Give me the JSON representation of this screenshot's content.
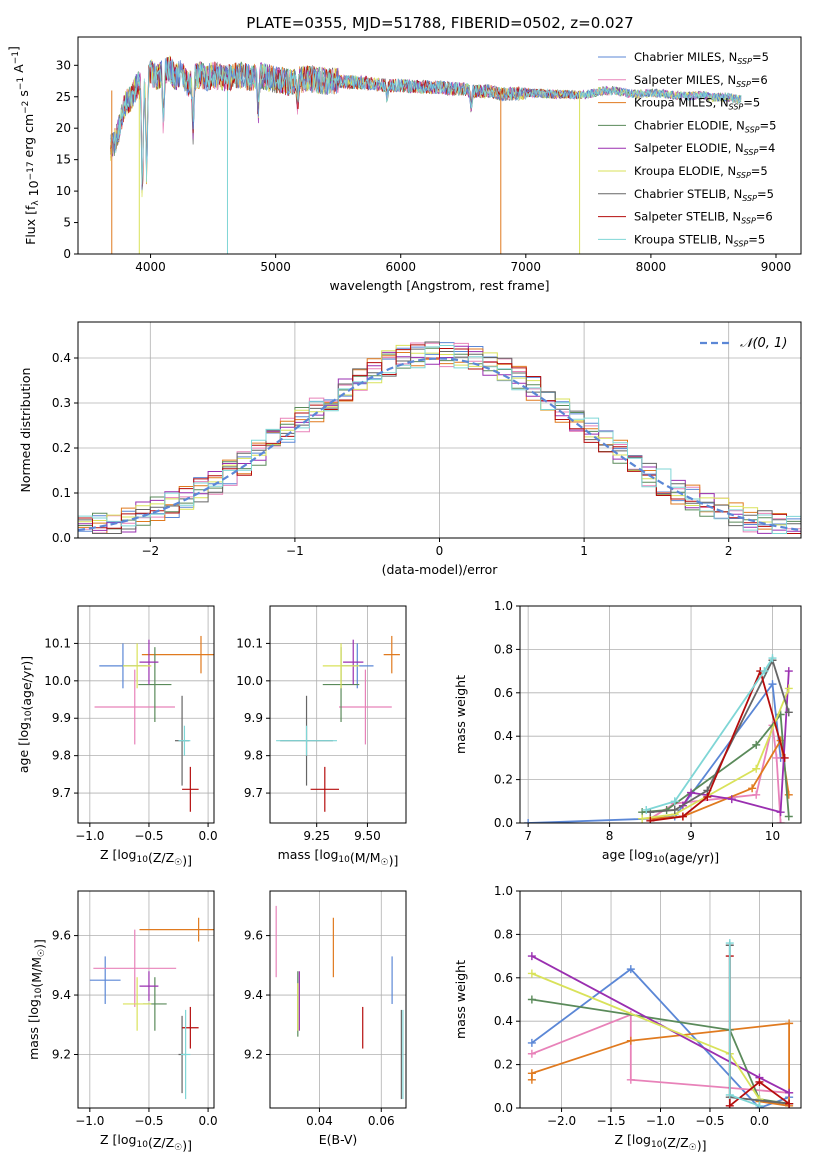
{
  "figure_title": "PLATE=0355, MJD=51788, FIBERID=0502, z=0.027",
  "colors": [
    "#5b87d6",
    "#e882b9",
    "#e07a1f",
    "#5a8a5a",
    "#9a2fb0",
    "#d9e25a",
    "#666666",
    "#b50d0d",
    "#7fd6d6"
  ],
  "legend_labels": [
    "Chabrier MILES, N_SSP=5",
    "Salpeter MILES, N_SSP=6",
    "Kroupa MILES, N_SSP=5",
    "Chabrier ELODIE, N_SSP=5",
    "Salpeter ELODIE, N_SSP=4",
    "Kroupa ELODIE, N_SSP=5",
    "Chabrier STELIB, N_SSP=5",
    "Salpeter STELIB, N_SSP=6",
    "Kroupa STELIB, N_SSP=5"
  ],
  "chart_data": [
    {
      "id": "spectrum",
      "type": "line",
      "xlabel": "wavelength [Angstrom, rest frame]",
      "ylabel": "Flux [f_λ 10^-17 erg cm^-2 s^-1 A^-1]",
      "xlim": [
        3420,
        9200
      ],
      "ylim": [
        0,
        34.5
      ],
      "xticks": [
        4000,
        5000,
        6000,
        7000,
        8000,
        9000
      ],
      "yticks": [
        0,
        5,
        10,
        15,
        20,
        25,
        30
      ],
      "grid": false,
      "legend": "top-right",
      "continuum": [
        [
          3680,
          17
        ],
        [
          3720,
          18
        ],
        [
          3760,
          21
        ],
        [
          3800,
          24
        ],
        [
          3850,
          25
        ],
        [
          3900,
          27
        ],
        [
          3950,
          26
        ],
        [
          4000,
          29
        ],
        [
          4050,
          28
        ],
        [
          4100,
          29
        ],
        [
          4150,
          29.5
        ],
        [
          4200,
          28
        ],
        [
          4250,
          29
        ],
        [
          4300,
          27
        ],
        [
          4350,
          28
        ],
        [
          4400,
          28.5
        ],
        [
          4450,
          28
        ],
        [
          4500,
          28.5
        ],
        [
          4600,
          28
        ],
        [
          4700,
          28.5
        ],
        [
          4800,
          28
        ],
        [
          4900,
          28.3
        ],
        [
          5000,
          27.7
        ],
        [
          5100,
          27.3
        ],
        [
          5200,
          27.7
        ],
        [
          5300,
          27.8
        ],
        [
          5400,
          27.5
        ],
        [
          5500,
          27.5
        ],
        [
          5600,
          27.3
        ],
        [
          5700,
          27.3
        ],
        [
          5800,
          27
        ],
        [
          5900,
          26.8
        ],
        [
          6000,
          26.8
        ],
        [
          6100,
          26.6
        ],
        [
          6200,
          26.6
        ],
        [
          6300,
          26.5
        ],
        [
          6400,
          26.3
        ],
        [
          6500,
          26.2
        ],
        [
          6600,
          25.8
        ],
        [
          6700,
          25.9
        ],
        [
          6800,
          25.4
        ],
        [
          6900,
          25.5
        ],
        [
          7000,
          25.6
        ],
        [
          7100,
          25.6
        ],
        [
          7200,
          25.4
        ],
        [
          7300,
          25.4
        ],
        [
          7400,
          25.3
        ],
        [
          7500,
          25.4
        ],
        [
          7600,
          25.9
        ],
        [
          7700,
          26
        ],
        [
          7800,
          25.6
        ],
        [
          7900,
          25.4
        ],
        [
          8000,
          25.6
        ],
        [
          8100,
          25.5
        ],
        [
          8200,
          25.2
        ],
        [
          8300,
          25.1
        ],
        [
          8400,
          25.3
        ],
        [
          8500,
          24.9
        ],
        [
          8600,
          24.9
        ],
        [
          8700,
          24.6
        ]
      ],
      "dips": [
        [
          3934,
          8
        ],
        [
          3969,
          12
        ],
        [
          4102,
          20
        ],
        [
          4340,
          19.5
        ],
        [
          4861,
          22
        ],
        [
          5175,
          24
        ],
        [
          5890,
          25
        ],
        [
          6563,
          23
        ]
      ],
      "gaps": [
        [
          3690,
          0
        ],
        [
          3910,
          0
        ],
        [
          4615,
          0
        ],
        [
          6800,
          0
        ],
        [
          7430,
          0
        ]
      ]
    },
    {
      "id": "residuals",
      "type": "histogram",
      "xlabel": "(data-model)/error",
      "ylabel": "Normed distribution",
      "xlim": [
        -2.5,
        2.5
      ],
      "ylim": [
        0,
        0.48
      ],
      "xticks": [
        -2,
        -1,
        0,
        1,
        2
      ],
      "yticks": [
        0,
        0.1,
        0.2,
        0.3,
        0.4
      ],
      "grid": true,
      "legend": "top-right",
      "gaussian_label": "𝒩(0, 1)",
      "bin_width": 0.1
    },
    {
      "id": "age_vs_Z",
      "type": "errorbar",
      "xlabel": "Z [log10(Z/Z☉)]",
      "ylabel": "age [log10(age/yr)]",
      "xlim": [
        -1.1,
        0.05
      ],
      "ylim": [
        9.62,
        10.2
      ],
      "xticks": [
        -1.0,
        -0.5,
        0.0
      ],
      "yticks": [
        9.7,
        9.8,
        9.9,
        10.0,
        10.1
      ],
      "grid": true,
      "points": [
        {
          "series": 0,
          "x": -0.72,
          "xerr": 0.2,
          "y": 10.04,
          "yerr": 0.06
        },
        {
          "series": 1,
          "x": -0.62,
          "xerr": 0.34,
          "y": 9.93,
          "yerr": 0.1
        },
        {
          "series": 2,
          "x": -0.06,
          "xerr": 0.5,
          "y": 10.07,
          "yerr": 0.05
        },
        {
          "series": 3,
          "x": -0.45,
          "xerr": 0.14,
          "y": 9.99,
          "yerr": 0.1
        },
        {
          "series": 4,
          "x": -0.5,
          "xerr": 0.08,
          "y": 10.05,
          "yerr": 0.06
        },
        {
          "series": 5,
          "x": -0.6,
          "xerr": 0.12,
          "y": 10.04,
          "yerr": 0.06
        },
        {
          "series": 6,
          "x": -0.22,
          "xerr": 0.06,
          "y": 9.84,
          "yerr": 0.12
        },
        {
          "series": 7,
          "x": -0.15,
          "xerr": 0.07,
          "y": 9.71,
          "yerr": 0.06
        },
        {
          "series": 8,
          "x": -0.2,
          "xerr": 0.05,
          "y": 9.84,
          "yerr": 0.04
        }
      ]
    },
    {
      "id": "age_vs_mass",
      "type": "errorbar",
      "xlabel": "mass [log10(M/M☉)]",
      "ylabel": "",
      "xlim": [
        9.02,
        9.69
      ],
      "ylim": [
        9.62,
        10.2
      ],
      "xticks": [
        9.25,
        9.5
      ],
      "yticks": [
        9.7,
        9.8,
        9.9,
        10.0,
        10.1
      ],
      "grid": true,
      "points": [
        {
          "series": 0,
          "x": 9.45,
          "xerr": 0.08,
          "y": 10.04,
          "yerr": 0.06
        },
        {
          "series": 1,
          "x": 9.49,
          "xerr": 0.13,
          "y": 9.93,
          "yerr": 0.1
        },
        {
          "series": 2,
          "x": 9.62,
          "xerr": 0.04,
          "y": 10.07,
          "yerr": 0.05
        },
        {
          "series": 3,
          "x": 9.37,
          "xerr": 0.09,
          "y": 9.99,
          "yerr": 0.1
        },
        {
          "series": 4,
          "x": 9.43,
          "xerr": 0.05,
          "y": 10.05,
          "yerr": 0.06
        },
        {
          "series": 5,
          "x": 9.37,
          "xerr": 0.09,
          "y": 10.04,
          "yerr": 0.06
        },
        {
          "series": 6,
          "x": 9.2,
          "xerr": 0.13,
          "y": 9.84,
          "yerr": 0.12
        },
        {
          "series": 7,
          "x": 9.29,
          "xerr": 0.07,
          "y": 9.71,
          "yerr": 0.06
        },
        {
          "series": 8,
          "x": 9.2,
          "xerr": 0.15,
          "y": 9.84,
          "yerr": 0.04
        }
      ]
    },
    {
      "id": "massweight_vs_age",
      "type": "line",
      "xlabel": "age [log10(age/yr)]",
      "ylabel": "mass weight",
      "xlim": [
        6.9,
        10.35
      ],
      "ylim": [
        0,
        1.0
      ],
      "xticks": [
        7,
        8,
        9,
        10
      ],
      "yticks": [
        0.0,
        0.2,
        0.4,
        0.6,
        0.8,
        1.0
      ],
      "grid": true,
      "series": [
        {
          "series": 0,
          "x": [
            7.0,
            8.5,
            8.8,
            10.0,
            10.1
          ],
          "y": [
            0.0,
            0.02,
            0.03,
            0.64,
            0.3
          ]
        },
        {
          "series": 1,
          "x": [
            8.5,
            8.8,
            9.8,
            10.0,
            10.05,
            10.1
          ],
          "y": [
            0.02,
            0.09,
            0.13,
            0.45,
            0.3,
            0.0
          ]
        },
        {
          "series": 2,
          "x": [
            8.5,
            8.9,
            9.75,
            10.1,
            10.2
          ],
          "y": [
            0.02,
            0.03,
            0.16,
            0.38,
            0.13
          ]
        },
        {
          "series": 3,
          "x": [
            8.4,
            8.7,
            9.8,
            10.1,
            10.2
          ],
          "y": [
            0.05,
            0.06,
            0.36,
            0.5,
            0.03
          ]
        },
        {
          "series": 4,
          "x": [
            8.9,
            9.0,
            9.5,
            10.1,
            10.2
          ],
          "y": [
            0.08,
            0.14,
            0.11,
            0.05,
            0.7
          ]
        },
        {
          "series": 5,
          "x": [
            8.4,
            8.8,
            9.8,
            10.2
          ],
          "y": [
            0.02,
            0.04,
            0.25,
            0.62
          ]
        },
        {
          "series": 6,
          "x": [
            8.5,
            8.8,
            9.2,
            10.0,
            10.2
          ],
          "y": [
            0.05,
            0.06,
            0.15,
            0.75,
            0.51
          ]
        },
        {
          "series": 7,
          "x": [
            8.5,
            8.9,
            9.2,
            9.85,
            10.15
          ],
          "y": [
            0.01,
            0.03,
            0.12,
            0.7,
            0.3
          ]
        },
        {
          "series": 8,
          "x": [
            8.45,
            8.8,
            9.9,
            10.0
          ],
          "y": [
            0.06,
            0.1,
            0.7,
            0.76
          ]
        }
      ]
    },
    {
      "id": "mass_vs_Z",
      "type": "errorbar",
      "xlabel": "Z [log10(Z/Z☉)]",
      "ylabel": "mass [log10(M/M☉)]",
      "xlim": [
        -1.1,
        0.05
      ],
      "ylim": [
        9.02,
        9.75
      ],
      "xticks": [
        -1.0,
        -0.5,
        0.0
      ],
      "yticks": [
        9.2,
        9.4,
        9.6
      ],
      "grid": true,
      "points": [
        {
          "series": 0,
          "x": -0.87,
          "xerr": 0.13,
          "y": 9.45,
          "yerr": 0.08
        },
        {
          "series": 1,
          "x": -0.62,
          "xerr": 0.35,
          "y": 9.49,
          "yerr": 0.13
        },
        {
          "series": 2,
          "x": -0.08,
          "xerr": 0.5,
          "y": 9.62,
          "yerr": 0.04
        },
        {
          "series": 3,
          "x": -0.45,
          "xerr": 0.1,
          "y": 9.37,
          "yerr": 0.09
        },
        {
          "series": 4,
          "x": -0.5,
          "xerr": 0.08,
          "y": 9.43,
          "yerr": 0.05
        },
        {
          "series": 5,
          "x": -0.6,
          "xerr": 0.12,
          "y": 9.37,
          "yerr": 0.09
        },
        {
          "series": 6,
          "x": -0.22,
          "xerr": 0.03,
          "y": 9.2,
          "yerr": 0.13
        },
        {
          "series": 7,
          "x": -0.15,
          "xerr": 0.07,
          "y": 9.29,
          "yerr": 0.07
        },
        {
          "series": 8,
          "x": -0.19,
          "xerr": 0.04,
          "y": 9.2,
          "yerr": 0.15
        }
      ]
    },
    {
      "id": "mass_vs_EBV",
      "type": "errorbar",
      "xlabel": "E(B-V)",
      "ylabel": "",
      "xlim": [
        0.024,
        0.068
      ],
      "ylim": [
        9.02,
        9.75
      ],
      "xticks": [
        0.04,
        0.06
      ],
      "yticks": [
        9.2,
        9.4,
        9.6
      ],
      "grid": true,
      "points": [
        {
          "series": 0,
          "x": 0.0635,
          "xerr": 0,
          "y": 9.45,
          "yerr": 0.08
        },
        {
          "series": 1,
          "x": 0.026,
          "xerr": 0,
          "y": 9.58,
          "yerr": 0.12
        },
        {
          "series": 2,
          "x": 0.0445,
          "xerr": 0,
          "y": 9.56,
          "yerr": 0.1
        },
        {
          "series": 3,
          "x": 0.033,
          "xerr": 0,
          "y": 9.37,
          "yerr": 0.11
        },
        {
          "series": 4,
          "x": 0.0335,
          "xerr": 0,
          "y": 9.38,
          "yerr": 0.1
        },
        {
          "series": 5,
          "x": 0.033,
          "xerr": 0,
          "y": 9.36,
          "yerr": 0.08
        },
        {
          "series": 6,
          "x": 0.0665,
          "xerr": 0,
          "y": 9.2,
          "yerr": 0.15
        },
        {
          "series": 7,
          "x": 0.054,
          "xerr": 0,
          "y": 9.29,
          "yerr": 0.07
        },
        {
          "series": 8,
          "x": 0.067,
          "xerr": 0,
          "y": 9.2,
          "yerr": 0.15
        }
      ]
    },
    {
      "id": "massweight_vs_Z",
      "type": "line",
      "xlabel": "Z [log10(Z/Z☉)]",
      "ylabel": "mass weight",
      "xlim": [
        -2.42,
        0.42
      ],
      "ylim": [
        0,
        1.0
      ],
      "xticks": [
        -2.0,
        -1.5,
        -1.0,
        -0.5,
        0.0
      ],
      "yticks": [
        0.0,
        0.2,
        0.4,
        0.6,
        0.8,
        1.0
      ],
      "grid": true,
      "series": [
        {
          "series": 0,
          "x": [
            -2.3,
            -1.3,
            0.0,
            0.3
          ],
          "y": [
            0.3,
            0.64,
            0.0,
            0.05
          ]
        },
        {
          "series": 1,
          "x": [
            -2.3,
            -1.3,
            -1.3,
            0.3,
            0.3
          ],
          "y": [
            0.25,
            0.43,
            0.13,
            0.07,
            0.02
          ]
        },
        {
          "series": 2,
          "x": [
            -2.3,
            -2.3,
            -1.3,
            0.3,
            0.3,
            0.0
          ],
          "y": [
            0.13,
            0.16,
            0.31,
            0.39,
            0.01,
            0.03
          ]
        },
        {
          "series": 3,
          "x": [
            -2.3,
            -0.3,
            0.0,
            0.3
          ],
          "y": [
            0.5,
            0.36,
            0.04,
            0.02
          ]
        },
        {
          "series": 4,
          "x": [
            -2.3,
            0.0,
            0.3
          ],
          "y": [
            0.7,
            0.14,
            0.07
          ]
        },
        {
          "series": 5,
          "x": [
            -2.3,
            -0.3,
            0.0
          ],
          "y": [
            0.62,
            0.25,
            0.04
          ]
        },
        {
          "series": 6,
          "x": [
            -0.3,
            -0.3,
            0.3
          ],
          "y": [
            0.75,
            0.05,
            0.02
          ]
        },
        {
          "series": 7,
          "x": [
            -0.3,
            -0.3,
            0.0,
            0.3
          ],
          "y": [
            0.7,
            0.01,
            0.12,
            0.02
          ]
        },
        {
          "series": 8,
          "x": [
            -0.3,
            -0.3,
            0.0
          ],
          "y": [
            0.76,
            0.06,
            0.01
          ]
        }
      ]
    }
  ]
}
